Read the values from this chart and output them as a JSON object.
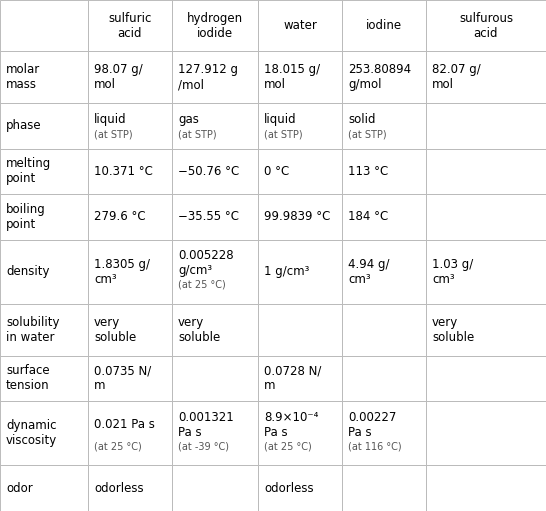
{
  "col_headers": [
    "",
    "sulfuric\nacid",
    "hydrogen\niodide",
    "water",
    "iodine",
    "sulfurous\nacid"
  ],
  "rows": [
    {
      "label": "molar\nmass",
      "cells": [
        {
          "main": "98.07 g/\nmol",
          "sub": ""
        },
        {
          "main": "127.912 g\n/mol",
          "sub": ""
        },
        {
          "main": "18.015 g/\nmol",
          "sub": ""
        },
        {
          "main": "253.80894\ng/mol",
          "sub": ""
        },
        {
          "main": "82.07 g/\nmol",
          "sub": ""
        }
      ]
    },
    {
      "label": "phase",
      "cells": [
        {
          "main": "liquid",
          "sub": "(at STP)"
        },
        {
          "main": "gas",
          "sub": "(at STP)"
        },
        {
          "main": "liquid",
          "sub": "(at STP)"
        },
        {
          "main": "solid",
          "sub": "(at STP)"
        },
        {
          "main": "",
          "sub": ""
        }
      ]
    },
    {
      "label": "melting\npoint",
      "cells": [
        {
          "main": "10.371 °C",
          "sub": ""
        },
        {
          "main": "−50.76 °C",
          "sub": ""
        },
        {
          "main": "0 °C",
          "sub": ""
        },
        {
          "main": "113 °C",
          "sub": ""
        },
        {
          "main": "",
          "sub": ""
        }
      ]
    },
    {
      "label": "boiling\npoint",
      "cells": [
        {
          "main": "279.6 °C",
          "sub": ""
        },
        {
          "main": "−35.55 °C",
          "sub": ""
        },
        {
          "main": "99.9839 °C",
          "sub": ""
        },
        {
          "main": "184 °C",
          "sub": ""
        },
        {
          "main": "",
          "sub": ""
        }
      ]
    },
    {
      "label": "density",
      "cells": [
        {
          "main": "1.8305 g/\ncm³",
          "sub": ""
        },
        {
          "main": "0.005228\ng/cm³",
          "sub": "(at 25 °C)"
        },
        {
          "main": "1 g/cm³",
          "sub": ""
        },
        {
          "main": "4.94 g/\ncm³",
          "sub": ""
        },
        {
          "main": "1.03 g/\ncm³",
          "sub": ""
        }
      ]
    },
    {
      "label": "solubility\nin water",
      "cells": [
        {
          "main": "very\nsoluble",
          "sub": ""
        },
        {
          "main": "very\nsoluble",
          "sub": ""
        },
        {
          "main": "",
          "sub": ""
        },
        {
          "main": "",
          "sub": ""
        },
        {
          "main": "very\nsoluble",
          "sub": ""
        }
      ]
    },
    {
      "label": "surface\ntension",
      "cells": [
        {
          "main": "0.0735 N/\nm",
          "sub": ""
        },
        {
          "main": "",
          "sub": ""
        },
        {
          "main": "0.0728 N/\nm",
          "sub": ""
        },
        {
          "main": "",
          "sub": ""
        },
        {
          "main": "",
          "sub": ""
        }
      ]
    },
    {
      "label": "dynamic\nviscosity",
      "cells": [
        {
          "main": "0.021 Pa s",
          "sub": "(at 25 °C)"
        },
        {
          "main": "0.001321\nPa s",
          "sub": "(at -39 °C)"
        },
        {
          "main": "8.9×10⁻⁴\nPa s",
          "sub": "(at 25 °C)"
        },
        {
          "main": "0.00227\nPa s",
          "sub": "(at 116 °C)"
        },
        {
          "main": "",
          "sub": ""
        }
      ]
    },
    {
      "label": "odor",
      "cells": [
        {
          "main": "odorless",
          "sub": ""
        },
        {
          "main": "",
          "sub": ""
        },
        {
          "main": "odorless",
          "sub": ""
        },
        {
          "main": "",
          "sub": ""
        },
        {
          "main": "",
          "sub": ""
        }
      ]
    }
  ],
  "bg_color": "#ffffff",
  "grid_color": "#bbbbbb",
  "text_color": "#000000",
  "sub_color": "#555555",
  "main_fontsize": 8.5,
  "sub_fontsize": 7.0,
  "header_fontsize": 8.5
}
